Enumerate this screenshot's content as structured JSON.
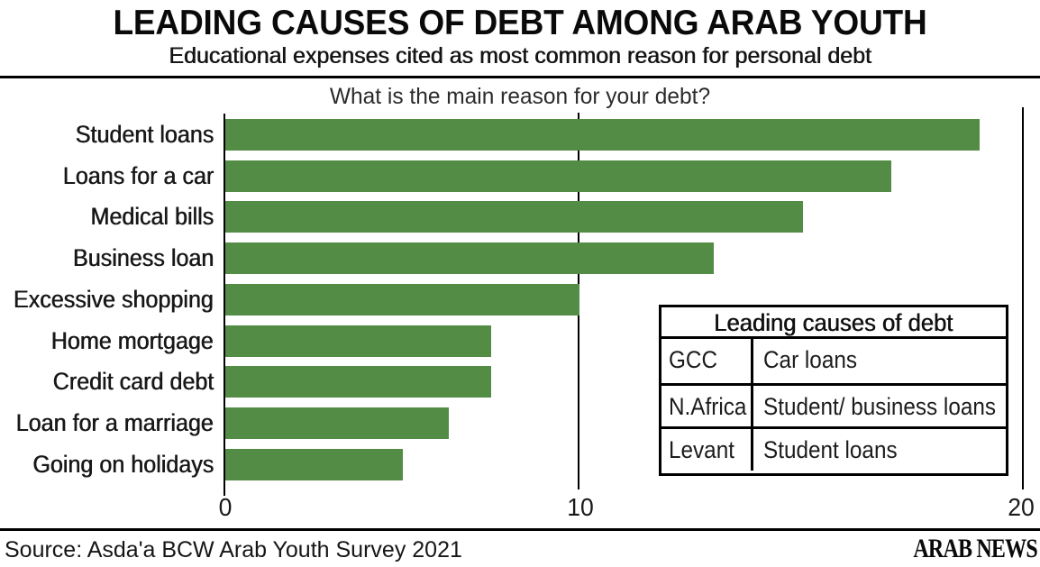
{
  "header": {
    "title": "LEADING CAUSES OF DEBT AMONG ARAB YOUTH",
    "subtitle": "Educational expenses cited as most common reason for personal debt"
  },
  "chart_data": {
    "type": "bar",
    "orientation": "horizontal",
    "title": "What is the main reason for your debt?",
    "categories": [
      "Student loans",
      "Loans for a car",
      "Medical bills",
      "Business loan",
      "Excessive shopping",
      "Home mortgage",
      "Credit card debt",
      "Loan for a marriage",
      "Going on holidays"
    ],
    "values": [
      21.3,
      18.8,
      16.3,
      13.8,
      10,
      7.5,
      7.5,
      6.3,
      5
    ],
    "xlabel": "",
    "ylabel": "",
    "xlim": [
      0,
      20
    ],
    "xticks": [
      "0",
      "10",
      "20"
    ],
    "bar_color": "#538C44",
    "grid": "vertical gridline at 10 and right frame at 20",
    "legend_position": "none"
  },
  "legend_table": {
    "title": "Leading causes of debt",
    "rows": [
      {
        "region": "GCC",
        "cause": "Car loans"
      },
      {
        "region": "N.Africa",
        "cause": "Student/ business loans"
      },
      {
        "region": "Levant",
        "cause": "Student loans"
      }
    ]
  },
  "footer": {
    "source": "Source: Asda'a BCW Arab Youth Survey 2021",
    "brand": "ARAB NEWS"
  }
}
